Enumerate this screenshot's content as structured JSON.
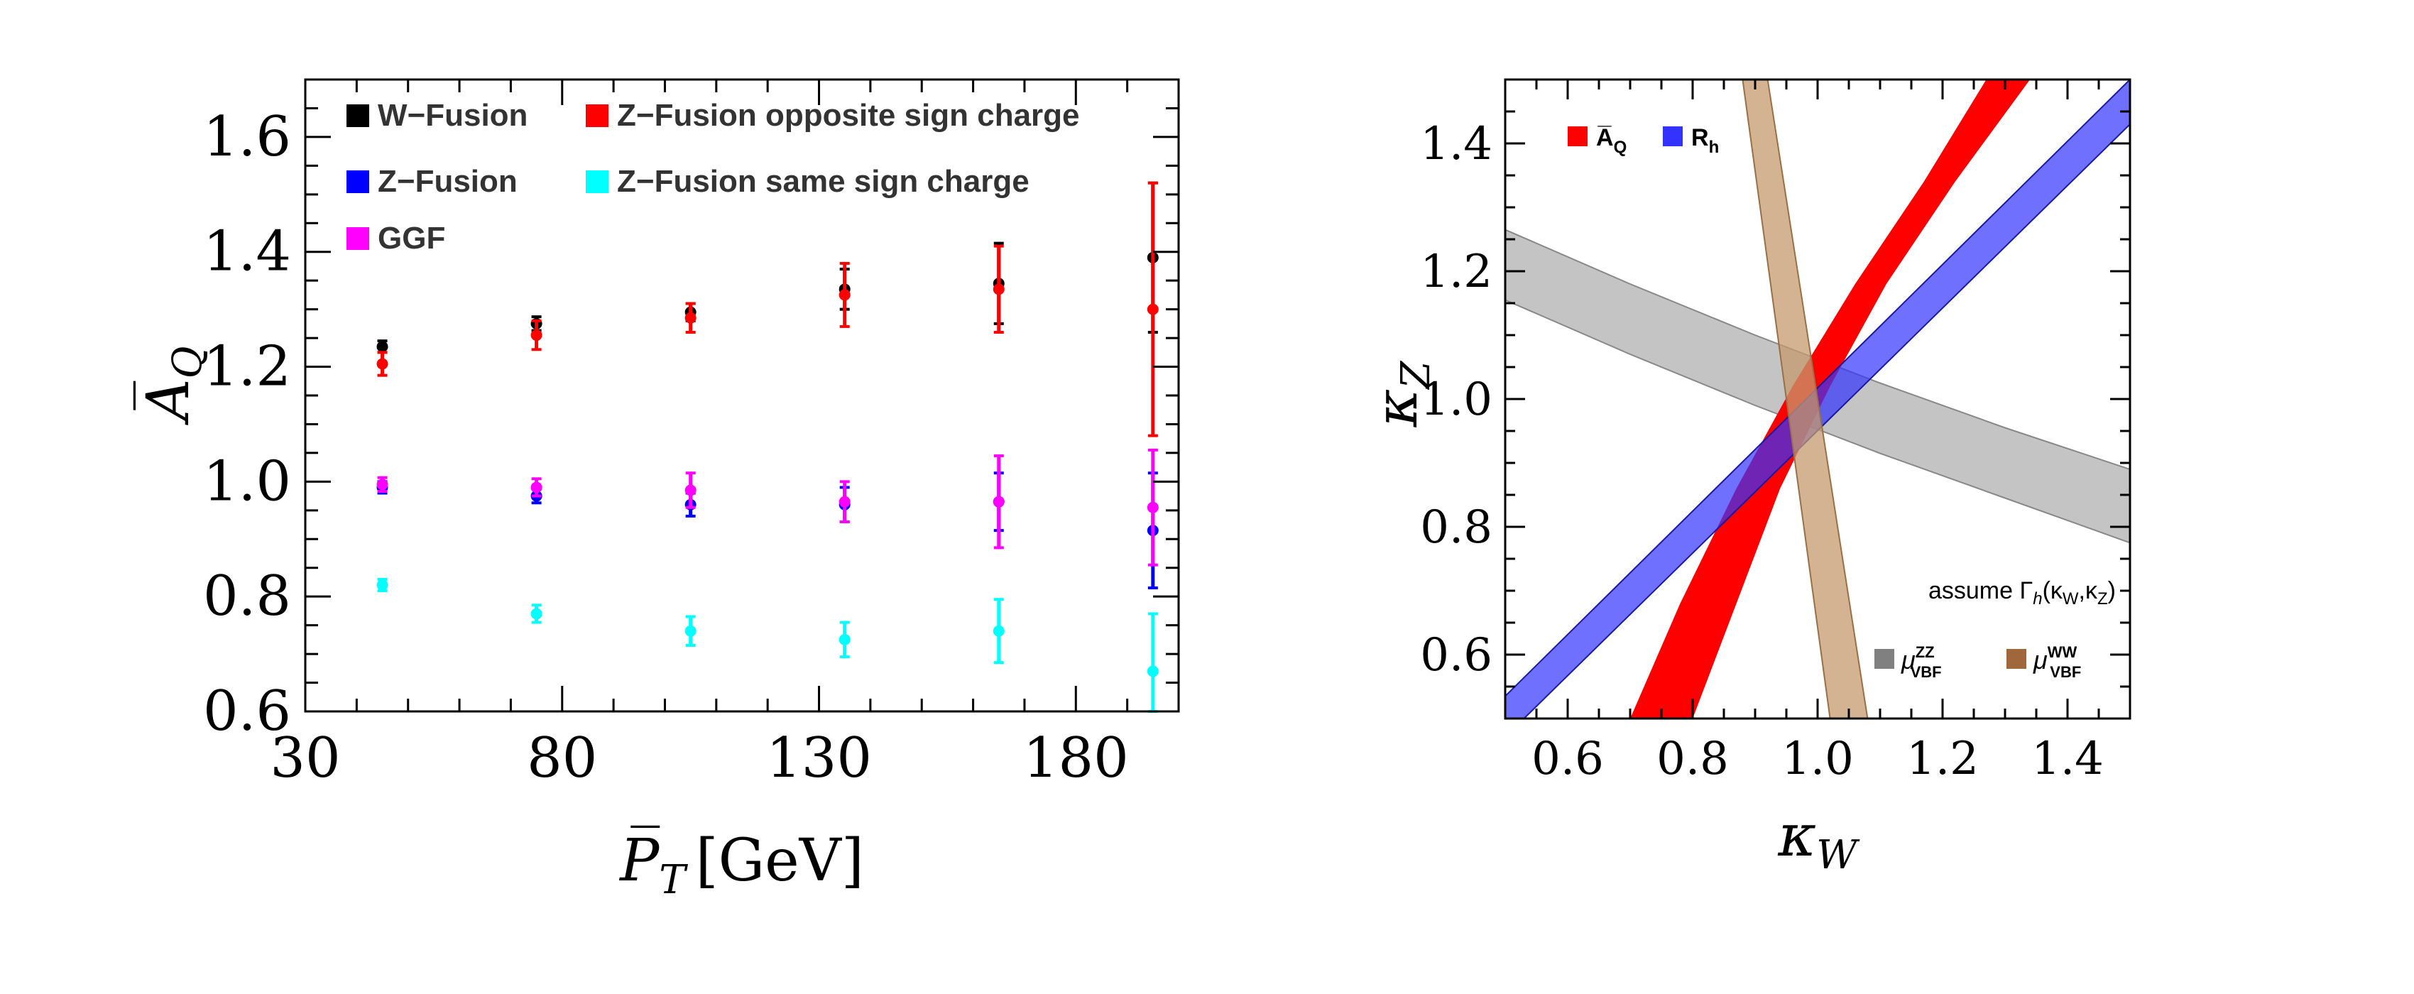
{
  "colors": {
    "w_fusion": "#000000",
    "z_fusion": "#0000ff",
    "z_fusion_os": "#ff0000",
    "z_fusion_ss": "#00ffff",
    "ggf": "#ff00ff",
    "band_aq": "#ff0000",
    "band_rh": "#3333ff",
    "band_zz": "#b0b0b0",
    "band_ww": "#c49a6c"
  },
  "chart_data": [
    {
      "type": "scatter",
      "title": "",
      "xlabel": "P̅",
      "xlabel_sub": "T",
      "xlabel_unit": "[GeV]",
      "ylabel": "A̅",
      "ylabel_sub": "Q",
      "xlim": [
        30,
        200
      ],
      "ylim": [
        0.6,
        1.7
      ],
      "xticks": [
        30,
        80,
        130,
        180
      ],
      "yticks": [
        0.6,
        0.8,
        1.0,
        1.2,
        1.4,
        1.6
      ],
      "xtick_labels": [
        "30",
        "80",
        "130",
        "180"
      ],
      "ytick_labels": [
        "0.6",
        "0.8",
        "1.0",
        "1.2",
        "1.4",
        "1.6"
      ],
      "legend": [
        {
          "label": "W−Fusion",
          "color_key": "w_fusion"
        },
        {
          "label": "Z−Fusion opposite sign charge",
          "color_key": "z_fusion_os"
        },
        {
          "label": "Z−Fusion",
          "color_key": "z_fusion"
        },
        {
          "label": "Z−Fusion same sign charge",
          "color_key": "z_fusion_ss"
        },
        {
          "label": "GGF",
          "color_key": "ggf"
        }
      ],
      "series": [
        {
          "name": "W−Fusion",
          "color_key": "w_fusion",
          "x": [
            45,
            75,
            105,
            135,
            165,
            195
          ],
          "y": [
            1.235,
            1.275,
            1.295,
            1.335,
            1.345,
            1.39
          ],
          "err": [
            0.01,
            0.012,
            0.015,
            0.035,
            0.07,
            0.13
          ]
        },
        {
          "name": "Z−Fusion opposite sign charge",
          "color_key": "z_fusion_os",
          "x": [
            45,
            75,
            105,
            135,
            165,
            195
          ],
          "y": [
            1.205,
            1.255,
            1.285,
            1.325,
            1.335,
            1.3
          ],
          "err": [
            0.02,
            0.025,
            0.025,
            0.055,
            0.075,
            0.22
          ]
        },
        {
          "name": "Z−Fusion",
          "color_key": "z_fusion",
          "x": [
            45,
            75,
            105,
            135,
            165,
            195
          ],
          "y": [
            0.99,
            0.975,
            0.96,
            0.96,
            0.965,
            0.915
          ],
          "err": [
            0.01,
            0.012,
            0.02,
            0.03,
            0.05,
            0.1
          ]
        },
        {
          "name": "GGF",
          "color_key": "ggf",
          "x": [
            45,
            75,
            105,
            135,
            165,
            195
          ],
          "y": [
            0.995,
            0.99,
            0.985,
            0.965,
            0.965,
            0.955
          ],
          "err": [
            0.012,
            0.015,
            0.03,
            0.035,
            0.08,
            0.1
          ]
        },
        {
          "name": "Z−Fusion same sign charge",
          "color_key": "z_fusion_ss",
          "x": [
            45,
            75,
            105,
            135,
            165,
            195
          ],
          "y": [
            0.82,
            0.77,
            0.74,
            0.725,
            0.74,
            0.67
          ],
          "err": [
            0.01,
            0.015,
            0.025,
            0.03,
            0.055,
            0.1
          ]
        }
      ]
    },
    {
      "type": "area",
      "title": "",
      "xlabel": "κ",
      "xlabel_sub": "W",
      "ylabel": "κ",
      "ylabel_sub": "Z",
      "xlim": [
        0.5,
        1.5
      ],
      "ylim": [
        0.5,
        1.5
      ],
      "xticks": [
        0.6,
        0.8,
        1.0,
        1.2,
        1.4
      ],
      "yticks": [
        0.6,
        0.8,
        1.0,
        1.2,
        1.4
      ],
      "xtick_labels": [
        "0.6",
        "0.8",
        "1.0",
        "1.2",
        "1.4"
      ],
      "ytick_labels": [
        "0.6",
        "0.8",
        "1.0",
        "1.2",
        "1.4"
      ],
      "legend_top": [
        {
          "label": "A̅",
          "sub": "Q",
          "color_key": "band_aq"
        },
        {
          "label": "R",
          "sub": "h",
          "color_key": "band_rh"
        }
      ],
      "note": {
        "prefix": "assume Γ",
        "sub": "h",
        "suffix": "(κ",
        "sub2": "W",
        "mid": ",κ",
        "sub3": "Z",
        "end": ")"
      },
      "legend_bottom": [
        {
          "label": "μ",
          "sup": "ZZ",
          "sub": "VBF",
          "color_key": "band_zz"
        },
        {
          "label": "μ",
          "sup": "WW",
          "sub": "VBF",
          "color_key": "band_ww"
        }
      ],
      "bands": [
        {
          "name": "μ ZZ VBF",
          "color_key": "band_zz",
          "opacity": 0.75,
          "upper": [
            [
              0.5,
              1.265
            ],
            [
              0.7,
              1.18
            ],
            [
              0.9,
              1.1
            ],
            [
              1.1,
              1.025
            ],
            [
              1.3,
              0.955
            ],
            [
              1.5,
              0.89
            ]
          ],
          "lower": [
            [
              0.5,
              1.155
            ],
            [
              0.7,
              1.07
            ],
            [
              0.9,
              0.99
            ],
            [
              1.1,
              0.915
            ],
            [
              1.3,
              0.845
            ],
            [
              1.5,
              0.775
            ]
          ]
        },
        {
          "name": "A̅Q",
          "color_key": "band_aq",
          "opacity": 1.0,
          "left": [
            [
              0.7,
              0.5
            ],
            [
              0.78,
              0.68
            ],
            [
              0.87,
              0.86
            ],
            [
              0.96,
              1.02
            ],
            [
              1.06,
              1.18
            ],
            [
              1.17,
              1.34
            ],
            [
              1.27,
              1.5
            ]
          ],
          "right": [
            [
              0.8,
              0.5
            ],
            [
              0.87,
              0.68
            ],
            [
              0.94,
              0.86
            ],
            [
              1.02,
              1.02
            ],
            [
              1.11,
              1.18
            ],
            [
              1.22,
              1.34
            ],
            [
              1.34,
              1.5
            ]
          ]
        },
        {
          "name": "Rh",
          "color_key": "band_rh",
          "opacity": 0.7,
          "upper": [
            [
              0.5,
              0.535
            ],
            [
              1.5,
              1.5
            ]
          ],
          "lower": [
            [
              0.5,
              0.5
            ],
            [
              0.53,
              0.5
            ],
            [
              1.5,
              1.43
            ]
          ]
        },
        {
          "name": "μ WW VBF",
          "color_key": "band_ww",
          "opacity": 0.75,
          "left": [
            [
              0.88,
              1.5
            ],
            [
              1.02,
              0.5
            ]
          ],
          "right": [
            [
              0.92,
              1.5
            ],
            [
              1.08,
              0.5
            ]
          ]
        }
      ]
    }
  ]
}
